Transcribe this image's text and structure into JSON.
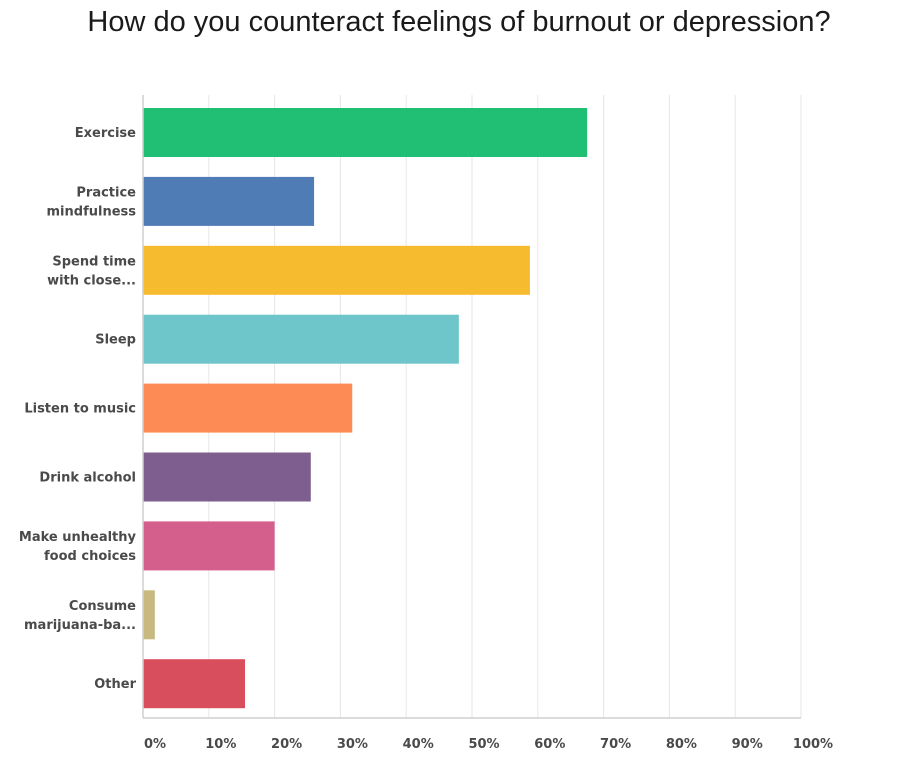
{
  "chart_data": {
    "type": "bar",
    "orientation": "horizontal",
    "title": "How do you counteract feelings of burnout or depression?",
    "categories": [
      [
        "Exercise"
      ],
      [
        "Practice",
        "mindfulness"
      ],
      [
        "Spend time",
        "with close..."
      ],
      [
        "Sleep"
      ],
      [
        "Listen to music"
      ],
      [
        "Drink alcohol"
      ],
      [
        "Make unhealthy",
        "food choices"
      ],
      [
        "Consume",
        "marijuana-ba..."
      ],
      [
        "Other"
      ]
    ],
    "values": [
      67.5,
      26,
      58.8,
      48,
      31.8,
      25.5,
      20,
      1.8,
      15.5
    ],
    "colors": [
      "#21bf73",
      "#507cb6",
      "#f6bb2f",
      "#6ec6ca",
      "#fd8b55",
      "#7d5e8e",
      "#d45e8c",
      "#c8b981",
      "#d94e5d"
    ],
    "xlim": [
      0,
      100
    ],
    "ticks": [
      "0%",
      "10%",
      "20%",
      "30%",
      "40%",
      "50%",
      "60%",
      "70%",
      "80%",
      "90%",
      "100%"
    ],
    "grid": true
  }
}
